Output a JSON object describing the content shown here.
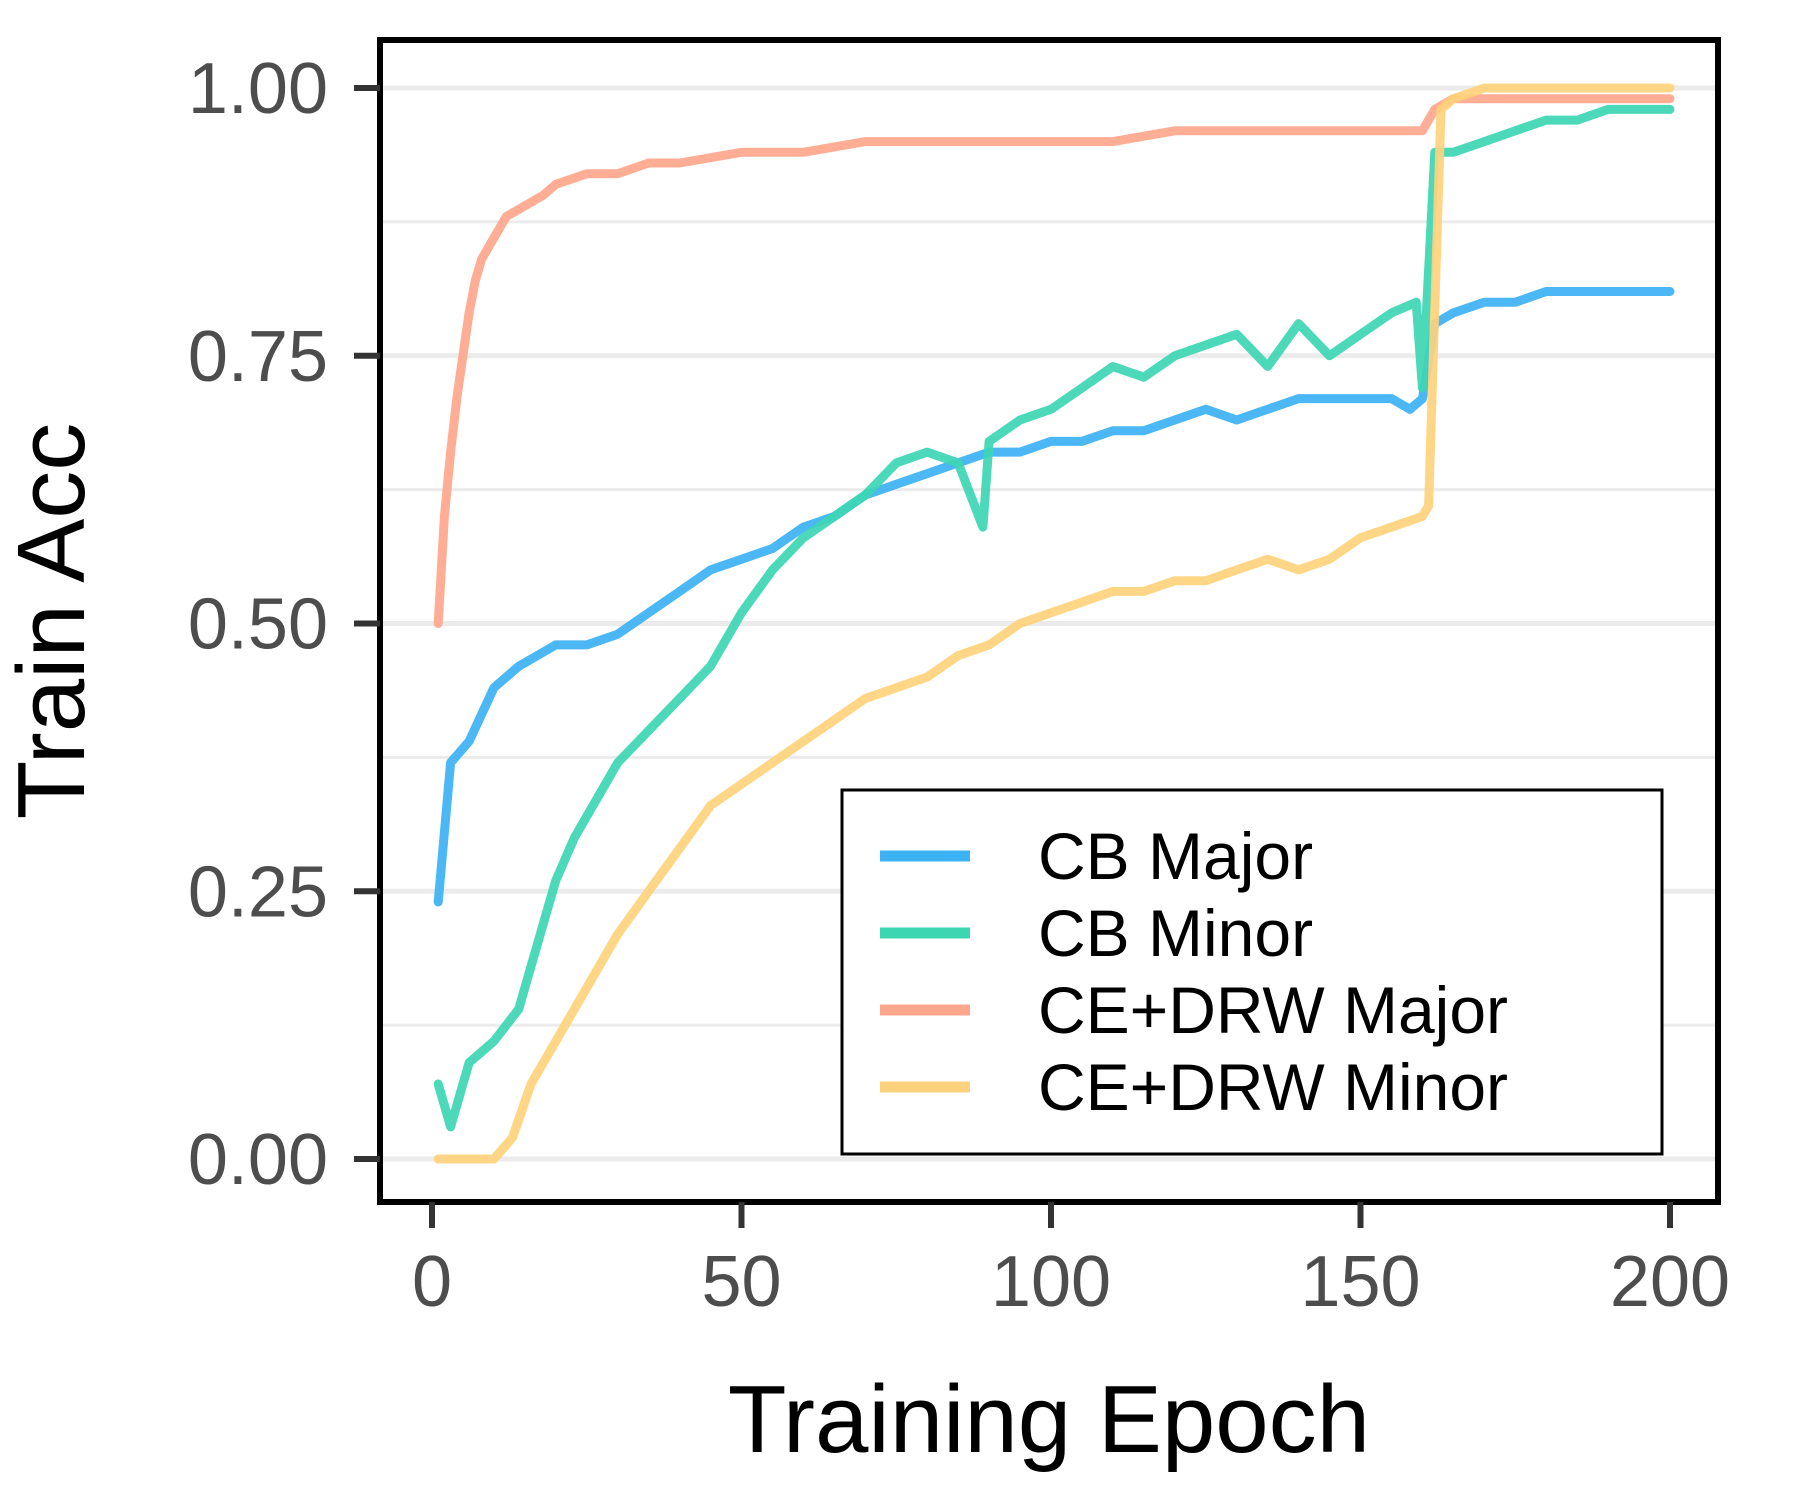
{
  "chart_data": {
    "type": "line",
    "title": "",
    "xlabel": "Training Epoch",
    "ylabel": "Train Acc",
    "xlim": [
      0,
      200
    ],
    "ylim": [
      0,
      1
    ],
    "xticks": [
      0,
      50,
      100,
      150,
      200
    ],
    "xtick_labels": [
      "0",
      "50",
      "100",
      "150",
      "200"
    ],
    "yticks": [
      0,
      0.25,
      0.5,
      0.75,
      1.0
    ],
    "ytick_labels": [
      "0.00",
      "0.25",
      "0.50",
      "0.75",
      "1.00"
    ],
    "grid": true,
    "legend_position": "bottom-right",
    "series": [
      {
        "name": "CB Major",
        "color": "#3cb1f3",
        "x": [
          1,
          3,
          6,
          10,
          14,
          20,
          25,
          30,
          35,
          40,
          45,
          50,
          55,
          60,
          65,
          70,
          75,
          80,
          85,
          90,
          95,
          100,
          105,
          110,
          115,
          120,
          125,
          130,
          135,
          140,
          145,
          150,
          155,
          158,
          160,
          162,
          165,
          170,
          175,
          180,
          185,
          190,
          195,
          200
        ],
        "values": [
          0.24,
          0.37,
          0.39,
          0.44,
          0.46,
          0.48,
          0.48,
          0.49,
          0.51,
          0.53,
          0.55,
          0.56,
          0.57,
          0.59,
          0.6,
          0.62,
          0.63,
          0.64,
          0.65,
          0.66,
          0.66,
          0.67,
          0.67,
          0.68,
          0.68,
          0.69,
          0.7,
          0.69,
          0.7,
          0.71,
          0.71,
          0.71,
          0.71,
          0.7,
          0.71,
          0.78,
          0.79,
          0.8,
          0.8,
          0.81,
          0.81,
          0.81,
          0.81,
          0.81
        ]
      },
      {
        "name": "CB Minor",
        "color": "#3dd6b3",
        "x": [
          1,
          3,
          6,
          10,
          14,
          18,
          20,
          23,
          26,
          30,
          35,
          40,
          45,
          50,
          55,
          60,
          65,
          70,
          75,
          80,
          85,
          89,
          90,
          95,
          100,
          105,
          110,
          115,
          120,
          125,
          130,
          135,
          140,
          145,
          150,
          155,
          159,
          160,
          162,
          165,
          170,
          175,
          180,
          185,
          190,
          195,
          200
        ],
        "values": [
          0.07,
          0.03,
          0.09,
          0.11,
          0.14,
          0.22,
          0.26,
          0.3,
          0.33,
          0.37,
          0.4,
          0.43,
          0.46,
          0.51,
          0.55,
          0.58,
          0.6,
          0.62,
          0.65,
          0.66,
          0.65,
          0.59,
          0.67,
          0.69,
          0.7,
          0.72,
          0.74,
          0.73,
          0.75,
          0.76,
          0.77,
          0.74,
          0.78,
          0.75,
          0.77,
          0.79,
          0.8,
          0.72,
          0.94,
          0.94,
          0.95,
          0.96,
          0.97,
          0.97,
          0.98,
          0.98,
          0.98
        ]
      },
      {
        "name": "CE+DRW Major",
        "color": "#ffa78c",
        "x": [
          1,
          2,
          3,
          4,
          5,
          6,
          7,
          8,
          10,
          12,
          15,
          18,
          20,
          25,
          30,
          35,
          40,
          50,
          60,
          70,
          80,
          90,
          100,
          110,
          120,
          130,
          140,
          150,
          155,
          160,
          162,
          165,
          170,
          180,
          190,
          200
        ],
        "values": [
          0.5,
          0.6,
          0.66,
          0.71,
          0.75,
          0.79,
          0.82,
          0.84,
          0.86,
          0.88,
          0.89,
          0.9,
          0.91,
          0.92,
          0.92,
          0.93,
          0.93,
          0.94,
          0.94,
          0.95,
          0.95,
          0.95,
          0.95,
          0.95,
          0.96,
          0.96,
          0.96,
          0.96,
          0.96,
          0.96,
          0.98,
          0.99,
          0.99,
          0.99,
          0.99,
          0.99
        ]
      },
      {
        "name": "CE+DRW Minor",
        "color": "#ffd17c",
        "x": [
          1,
          5,
          10,
          13,
          16,
          20,
          25,
          30,
          35,
          40,
          45,
          50,
          55,
          60,
          65,
          70,
          75,
          80,
          85,
          90,
          95,
          100,
          105,
          110,
          115,
          120,
          125,
          130,
          135,
          140,
          145,
          150,
          155,
          160,
          161,
          163,
          165,
          170,
          180,
          190,
          200
        ],
        "values": [
          0.0,
          0.0,
          0.0,
          0.02,
          0.07,
          0.11,
          0.16,
          0.21,
          0.25,
          0.29,
          0.33,
          0.35,
          0.37,
          0.39,
          0.41,
          0.43,
          0.44,
          0.45,
          0.47,
          0.48,
          0.5,
          0.51,
          0.52,
          0.53,
          0.53,
          0.54,
          0.54,
          0.55,
          0.56,
          0.55,
          0.56,
          0.58,
          0.59,
          0.6,
          0.61,
          0.98,
          0.99,
          1.0,
          1.0,
          1.0,
          1.0
        ]
      }
    ]
  }
}
